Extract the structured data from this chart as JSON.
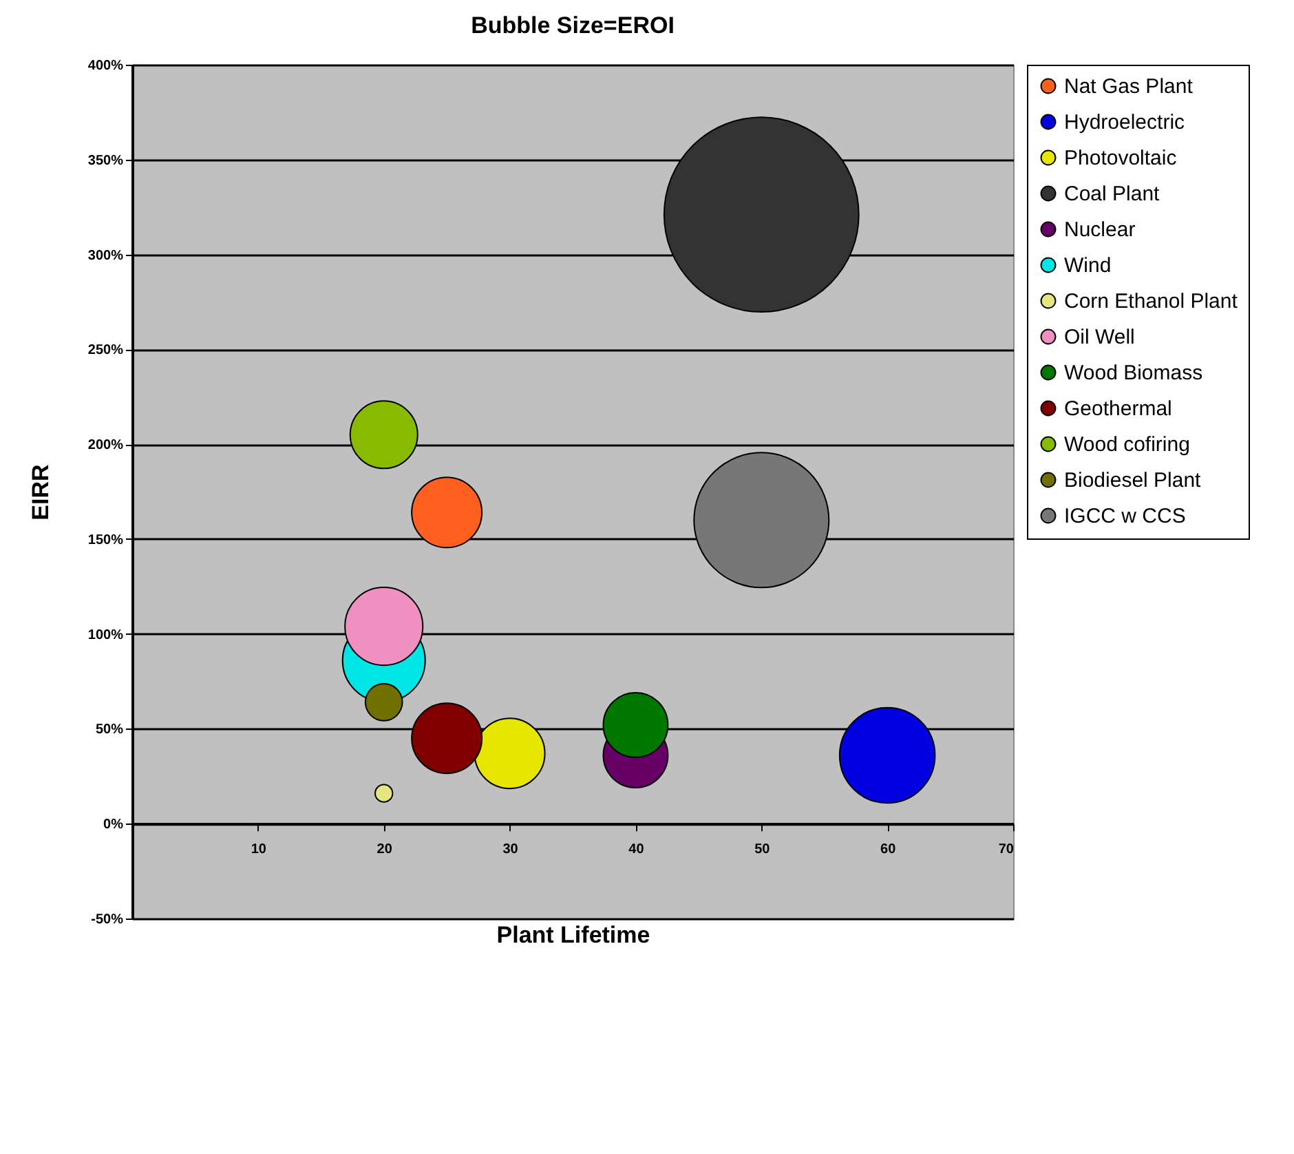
{
  "chart_data": {
    "type": "bubble",
    "title": "Bubble Size=EROI",
    "xlabel": "Plant Lifetime",
    "ylabel": "EIRR",
    "xlim": [
      0,
      70
    ],
    "xticks": [
      10,
      20,
      30,
      40,
      50,
      60,
      70
    ],
    "ylim": [
      -50,
      400
    ],
    "yticks": [
      {
        "value": -50,
        "label": "-50%"
      },
      {
        "value": 0,
        "label": "0%"
      },
      {
        "value": 50,
        "label": "50%"
      },
      {
        "value": 100,
        "label": "100%"
      },
      {
        "value": 150,
        "label": "150%"
      },
      {
        "value": 200,
        "label": "200%"
      },
      {
        "value": 250,
        "label": "250%"
      },
      {
        "value": 300,
        "label": "300%"
      },
      {
        "value": 350,
        "label": "350%"
      },
      {
        "value": 400,
        "label": "400%"
      }
    ],
    "grid": "y",
    "legend": "right",
    "series": [
      {
        "name": "Nat Gas Plant",
        "color": "#ff6020",
        "x": [
          25
        ],
        "values": [
          164
        ],
        "sizes": [
          0.13
        ]
      },
      {
        "name": "Hydroelectric",
        "color": "#0000e0",
        "x": [
          60
        ],
        "values": [
          36
        ],
        "sizes": [
          0.24
        ]
      },
      {
        "name": "Photovoltaic",
        "color": "#e6e600",
        "x": [
          30
        ],
        "values": [
          37
        ],
        "sizes": [
          0.13
        ]
      },
      {
        "name": "Coal Plant",
        "color": "#333333",
        "x": [
          50
        ],
        "values": [
          321
        ],
        "sizes": [
          1
        ]
      },
      {
        "name": "Nuclear",
        "color": "#660066",
        "x": [
          40
        ],
        "values": [
          36
        ],
        "sizes": [
          0.11
        ]
      },
      {
        "name": "Wind",
        "color": "#00e6e6",
        "x": [
          20
        ],
        "values": [
          86
        ],
        "sizes": [
          0.18
        ]
      },
      {
        "name": "Corn Ethanol Plant",
        "color": "#e6e680",
        "x": [
          20
        ],
        "values": [
          16
        ],
        "sizes": [
          0.008
        ]
      },
      {
        "name": "Oil Well",
        "color": "#f090c0",
        "x": [
          20
        ],
        "values": [
          104
        ],
        "sizes": [
          0.16
        ]
      },
      {
        "name": "Wood Biomass",
        "color": "#007800",
        "x": [
          40
        ],
        "values": [
          52
        ],
        "sizes": [
          0.11
        ]
      },
      {
        "name": "Geothermal",
        "color": "#800000",
        "x": [
          25
        ],
        "values": [
          45
        ],
        "sizes": [
          0.13
        ]
      },
      {
        "name": "Wood cofiring",
        "color": "#88bb00",
        "x": [
          20
        ],
        "values": [
          205
        ],
        "sizes": [
          0.12
        ]
      },
      {
        "name": "Biodiesel Plant",
        "color": "#707000",
        "x": [
          20
        ],
        "values": [
          64
        ],
        "sizes": [
          0.036
        ]
      },
      {
        "name": "IGCC w CCS",
        "color": "#777777",
        "x": [
          50
        ],
        "values": [
          160
        ],
        "sizes": [
          0.48
        ]
      }
    ]
  }
}
